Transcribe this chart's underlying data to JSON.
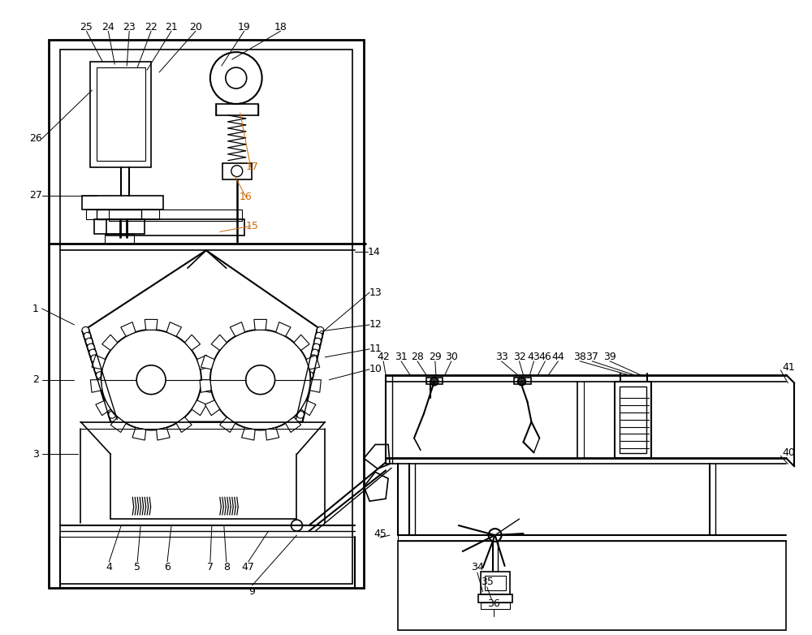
{
  "bg_color": "#ffffff",
  "lc": "#000000",
  "oc": "#cc6600",
  "figsize": [
    10.0,
    7.82
  ],
  "dpi": 100
}
